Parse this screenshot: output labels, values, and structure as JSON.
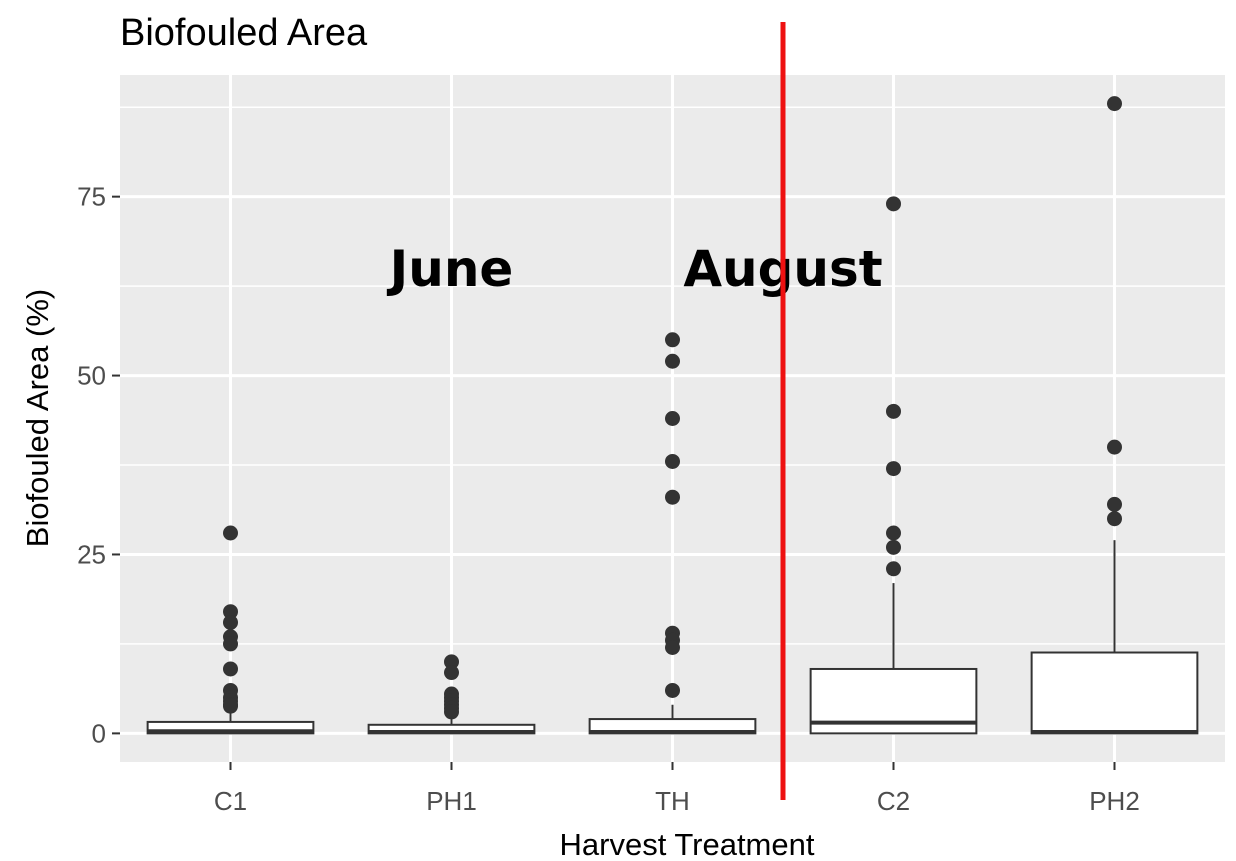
{
  "chart_data": {
    "type": "box",
    "title": "Biofouled Area",
    "xlabel": "Harvest Treatment",
    "ylabel": "Biofouled Area (%)",
    "ylim": [
      -4,
      92
    ],
    "yticks": [
      0,
      25,
      50,
      75
    ],
    "grid": true,
    "categories": [
      "C1",
      "PH1",
      "TH",
      "C2",
      "PH2"
    ],
    "boxes": [
      {
        "category": "C1",
        "q1": 0,
        "median": 0.3,
        "q3": 1.6,
        "whisker_low": 0,
        "whisker_high": 3.5,
        "outliers": [
          28,
          17,
          15.5,
          13.5,
          12.5,
          9,
          6,
          5,
          4.5,
          4,
          3.8
        ]
      },
      {
        "category": "PH1",
        "q1": 0,
        "median": 0.2,
        "q3": 1.2,
        "whisker_low": 0,
        "whisker_high": 2.5,
        "outliers": [
          10,
          8.5,
          5.5,
          5,
          4.5,
          4,
          3.5,
          3
        ]
      },
      {
        "category": "TH",
        "q1": 0,
        "median": 0.2,
        "q3": 2.0,
        "whisker_low": 0,
        "whisker_high": 4,
        "outliers": [
          55,
          52,
          44,
          38,
          33,
          14,
          13,
          12,
          6
        ]
      },
      {
        "category": "C2",
        "q1": 0,
        "median": 1.5,
        "q3": 9.0,
        "whisker_low": 0,
        "whisker_high": 21,
        "outliers": [
          74,
          45,
          37,
          28,
          26,
          23
        ]
      },
      {
        "category": "PH2",
        "q1": 0,
        "median": 0.2,
        "q3": 11.3,
        "whisker_low": 0,
        "whisker_high": 27,
        "outliers": [
          88,
          40,
          32,
          30
        ]
      }
    ],
    "annotations": [
      {
        "text": "June",
        "x": "PH1",
        "y": 65
      },
      {
        "text": "August",
        "x": "C2.5",
        "y": 65
      }
    ],
    "divider": {
      "between": [
        "TH",
        "C2"
      ],
      "color": "#ee1111"
    },
    "panel_bg": "#ebebeb"
  }
}
